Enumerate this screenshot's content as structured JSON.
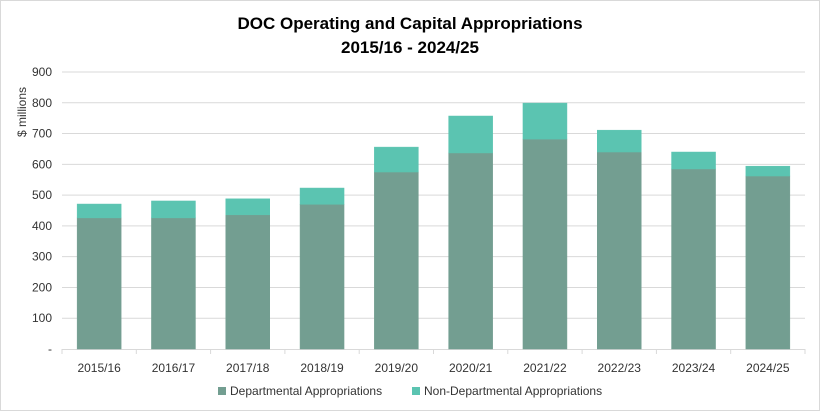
{
  "chart_data": {
    "type": "bar",
    "stacked": true,
    "title": "DOC Operating and Capital Appropriations",
    "subtitle": "2015/16 - 2024/25",
    "xlabel": "",
    "ylabel": "$ millions",
    "ylim": [
      0,
      900
    ],
    "yticks": [
      0,
      100,
      200,
      300,
      400,
      500,
      600,
      700,
      800,
      900
    ],
    "ytick_labels": [
      "-",
      "100",
      "200",
      "300",
      "400",
      "500",
      "600",
      "700",
      "800",
      "900"
    ],
    "grid": true,
    "legend_position": "bottom",
    "categories": [
      "2015/16",
      "2016/17",
      "2017/18",
      "2018/19",
      "2019/20",
      "2020/21",
      "2021/22",
      "2022/23",
      "2023/24",
      "2024/25"
    ],
    "series": [
      {
        "name": "Departmental Appropriations",
        "color": "#739E91",
        "values": [
          426,
          426,
          436,
          470,
          575,
          637,
          682,
          640,
          585,
          562
        ]
      },
      {
        "name": "Non-Departmental Appropriations",
        "color": "#5BC4B1",
        "values": [
          45,
          55,
          52,
          53,
          81,
          120,
          117,
          71,
          55,
          32
        ]
      }
    ]
  }
}
